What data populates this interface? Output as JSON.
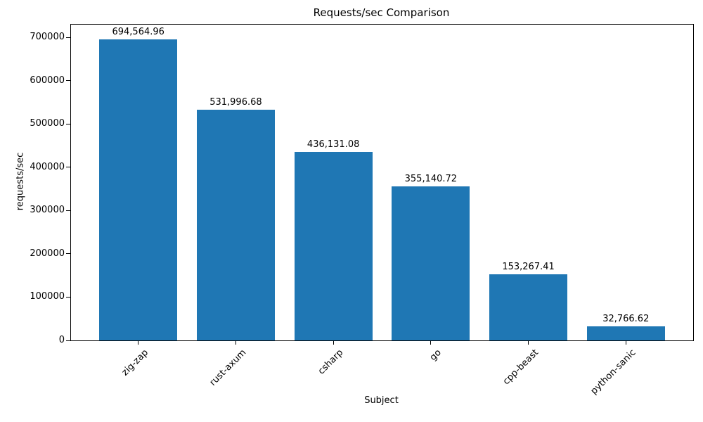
{
  "figure": {
    "background": "#ffffff"
  },
  "chart_data": {
    "type": "bar",
    "title": "Requests/sec Comparison",
    "xlabel": "Subject",
    "ylabel": "requests/sec",
    "categories": [
      "zig-zap",
      "rust-axum",
      "csharp",
      "go",
      "cpp-beast",
      "python-sanic"
    ],
    "values": [
      694564.96,
      531996.68,
      436131.08,
      355140.72,
      153267.41,
      32766.62
    ],
    "value_labels": [
      "694,564.96",
      "531,996.68",
      "436,131.08",
      "355,140.72",
      "153,267.41",
      "32,766.62"
    ],
    "bar_color": "#1f77b4",
    "ylim": [
      0,
      729293
    ],
    "yticks": [
      0,
      100000,
      200000,
      300000,
      400000,
      500000,
      600000,
      700000
    ],
    "ytick_labels": [
      "0",
      "100000",
      "200000",
      "300000",
      "400000",
      "500000",
      "600000",
      "700000"
    ],
    "x_tick_rotation": 45,
    "bar_width_fraction": 0.8,
    "grid": false,
    "legend": null
  }
}
